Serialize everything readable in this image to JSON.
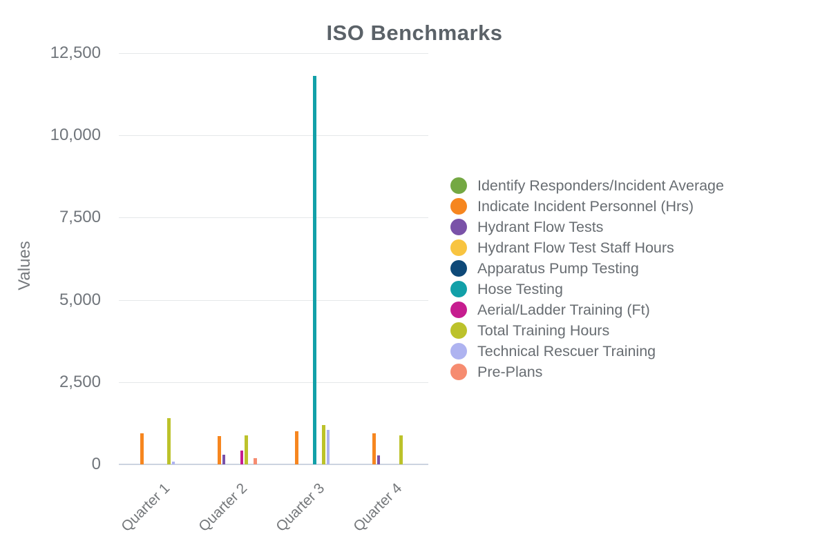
{
  "chart_data": {
    "type": "bar",
    "title": "ISO Benchmarks",
    "ylabel": "Values",
    "xlabel": "",
    "categories": [
      "Quarter 1",
      "Quarter 2",
      "Quarter 3",
      "Quarter 4"
    ],
    "series": [
      {
        "name": "Identify Responders/Incident Average",
        "color": "#74A843",
        "values": [
          0,
          0,
          0,
          0
        ]
      },
      {
        "name": "Indicate Incident Personnel (Hrs)",
        "color": "#F6861F",
        "values": [
          950,
          850,
          1000,
          950
        ]
      },
      {
        "name": "Hydrant Flow Tests",
        "color": "#7A52A8",
        "values": [
          0,
          300,
          0,
          280
        ]
      },
      {
        "name": "Hydrant Flow Test Staff Hours",
        "color": "#F8C440",
        "values": [
          0,
          0,
          0,
          0
        ]
      },
      {
        "name": "Apparatus Pump Testing",
        "color": "#0E4978",
        "values": [
          0,
          0,
          0,
          0
        ]
      },
      {
        "name": "Hose Testing",
        "color": "#12A0A8",
        "values": [
          0,
          0,
          11800,
          0
        ]
      },
      {
        "name": "Aerial/Ladder Training (Ft)",
        "color": "#C61D8F",
        "values": [
          0,
          420,
          0,
          0
        ]
      },
      {
        "name": "Total Training Hours",
        "color": "#BCC22B",
        "values": [
          1400,
          880,
          1200,
          880
        ]
      },
      {
        "name": "Technical Rescuer Training",
        "color": "#AEB3F0",
        "values": [
          75,
          0,
          1040,
          0
        ]
      },
      {
        "name": "Pre-Plans",
        "color": "#F68C70",
        "values": [
          0,
          190,
          0,
          0
        ]
      }
    ],
    "yticks": [
      {
        "value": 0,
        "label": "0"
      },
      {
        "value": 2500,
        "label": "2,500"
      },
      {
        "value": 5000,
        "label": "5,000"
      },
      {
        "value": 7500,
        "label": "7,500"
      },
      {
        "value": 10000,
        "label": "10,000"
      },
      {
        "value": 12500,
        "label": "12,500"
      }
    ],
    "ylim": [
      0,
      12500
    ],
    "grid": "horizontal",
    "legend_position": "right",
    "background": "#ffffff"
  }
}
